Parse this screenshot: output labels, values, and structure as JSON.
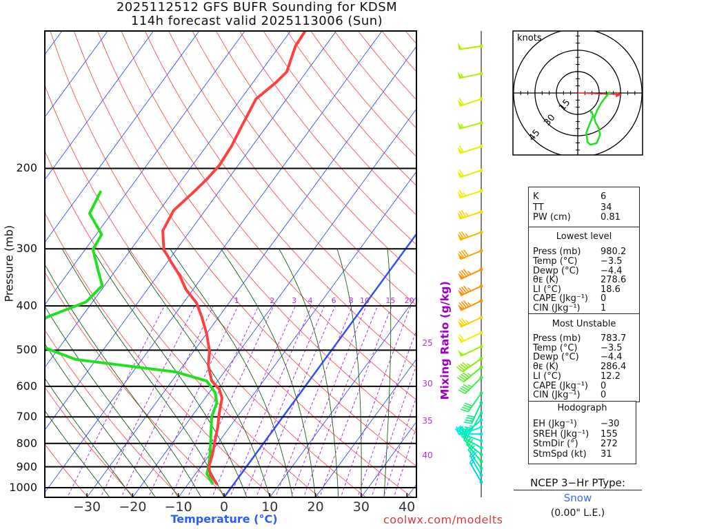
{
  "header": {
    "title_line1": "2025112512 GFS BUFR Sounding for KDSM",
    "title_line2": "114h forecast valid 2025113006 (Sun)"
  },
  "footer": {
    "credit": "coolwx.com/modelts"
  },
  "colors": {
    "temperature": "#ff4040",
    "dewpoint": "#20e020",
    "isotherm": "#3050ff",
    "dry_adiabat": "#ff5050",
    "moist_adiabat": "#106010",
    "mixing_ratio": "#b030e0",
    "storm_motion": "#ff3030"
  },
  "chart_data": {
    "type": "skew-t",
    "title": "2025112512 GFS BUFR Sounding for KDSM",
    "xlabel": "Temperature (°C)",
    "ylabel": "Pressure (mb)",
    "mixing_ratio_label": "Mixing Ratio (g/kg)",
    "xlim": [
      -30,
      40
    ],
    "ylim": [
      1050,
      100
    ],
    "pressure_ticks": [
      "200",
      "300",
      "400",
      "500",
      "600",
      "700",
      "800",
      "900",
      "1000"
    ],
    "pressure_values": [
      200,
      300,
      400,
      500,
      600,
      700,
      800,
      900,
      1000
    ],
    "temp_ticks": [
      "−30",
      "−20",
      "−10",
      "0",
      "10",
      "20",
      "30",
      "40"
    ],
    "temp_values": [
      -30,
      -20,
      -10,
      0,
      10,
      20,
      30,
      40
    ],
    "mixing_ratio_top_labels": [
      "1",
      "2",
      "3",
      "4",
      "6",
      "8",
      "10",
      "15",
      "20"
    ],
    "mixing_ratio_top_values": [
      1,
      2,
      3,
      4,
      6,
      8,
      10,
      15,
      20
    ],
    "mixing_ratio_side_labels": [
      "25",
      "30",
      "35",
      "40"
    ],
    "temperature_profile": [
      [
        983,
        -3.6
      ],
      [
        939,
        -6.5
      ],
      [
        901,
        -8.2
      ],
      [
        846,
        -9.4
      ],
      [
        790,
        -11.0
      ],
      [
        737,
        -12.6
      ],
      [
        687,
        -14.5
      ],
      [
        637,
        -16.3
      ],
      [
        609,
        -18.3
      ],
      [
        584,
        -21.3
      ],
      [
        539,
        -24.6
      ],
      [
        503,
        -26.5
      ],
      [
        461,
        -29.9
      ],
      [
        423,
        -33.7
      ],
      [
        394,
        -37.1
      ],
      [
        368,
        -41.6
      ],
      [
        343,
        -45.2
      ],
      [
        320,
        -49.3
      ],
      [
        301,
        -52.8
      ],
      [
        274,
        -56.0
      ],
      [
        247,
        -56.9
      ],
      [
        226,
        -55.5
      ],
      [
        211,
        -54.6
      ],
      [
        197,
        -54.1
      ],
      [
        179,
        -54.5
      ],
      [
        163,
        -55.4
      ],
      [
        141,
        -56.7
      ],
      [
        130,
        -55.0
      ],
      [
        123,
        -54.3
      ],
      [
        108,
        -56.5
      ],
      [
        100,
        -56.8
      ]
    ],
    "dewpoint_profile": [
      [
        983,
        -4.5
      ],
      [
        933,
        -7.5
      ],
      [
        892,
        -8.5
      ],
      [
        832,
        -10.4
      ],
      [
        763,
        -13.0
      ],
      [
        699,
        -15.6
      ],
      [
        652,
        -16.7
      ],
      [
        619,
        -18.7
      ],
      [
        584,
        -22.4
      ],
      [
        558,
        -30.6
      ],
      [
        524,
        -54.5
      ],
      [
        494,
        -63.1
      ],
      [
        469,
        -71
      ],
      [
        423,
        -67.5
      ],
      [
        392,
        -61.4
      ],
      [
        361,
        -60.5
      ],
      [
        337,
        -63.5
      ],
      [
        301,
        -68.3
      ],
      [
        279,
        -68.8
      ],
      [
        251,
        -74.8
      ],
      [
        224,
        -75.9
      ]
    ],
    "winds": [
      {
        "p": 108,
        "dir": 262,
        "spd": 50,
        "color": "#b0f000"
      },
      {
        "p": 124,
        "dir": 258,
        "spd": 55,
        "color": "#b0f000"
      },
      {
        "p": 141,
        "dir": 252,
        "spd": 60,
        "color": "#e0f000"
      },
      {
        "p": 159,
        "dir": 255,
        "spd": 55,
        "color": "#b0f000"
      },
      {
        "p": 179,
        "dir": 252,
        "spd": 60,
        "color": "#e8f000"
      },
      {
        "p": 202,
        "dir": 252,
        "spd": 60,
        "color": "#e8f000"
      },
      {
        "p": 224,
        "dir": 252,
        "spd": 65,
        "color": "#f0f000"
      },
      {
        "p": 249,
        "dir": 252,
        "spd": 75,
        "color": "#ffd800"
      },
      {
        "p": 276,
        "dir": 250,
        "spd": 75,
        "color": "#ffb000"
      },
      {
        "p": 303,
        "dir": 248,
        "spd": 80,
        "color": "#ffa000"
      },
      {
        "p": 333,
        "dir": 245,
        "spd": 85,
        "color": "#ff9000"
      },
      {
        "p": 362,
        "dir": 245,
        "spd": 85,
        "color": "#ff9000"
      },
      {
        "p": 390,
        "dir": 245,
        "spd": 85,
        "color": "#ff9000"
      },
      {
        "p": 424,
        "dir": 245,
        "spd": 75,
        "color": "#ffd000"
      },
      {
        "p": 458,
        "dir": 245,
        "spd": 60,
        "color": "#f0f000"
      },
      {
        "p": 491,
        "dir": 245,
        "spd": 50,
        "color": "#a0f000"
      },
      {
        "p": 522,
        "dir": 235,
        "spd": 45,
        "color": "#80f000"
      },
      {
        "p": 545,
        "dir": 230,
        "spd": 45,
        "color": "#60f020"
      },
      {
        "p": 574,
        "dir": 225,
        "spd": 45,
        "color": "#40f040"
      },
      {
        "p": 621,
        "dir": 215,
        "spd": 40,
        "color": "#20f060"
      },
      {
        "p": 652,
        "dir": 205,
        "spd": 40,
        "color": "#00f080"
      },
      {
        "p": 687,
        "dir": 210,
        "spd": 35,
        "color": "#00f0a0"
      },
      {
        "p": 711,
        "dir": 230,
        "spd": 35,
        "color": "#00f0c0"
      },
      {
        "p": 737,
        "dir": 250,
        "spd": 30,
        "color": "#00f0e0"
      },
      {
        "p": 763,
        "dir": 270,
        "spd": 30,
        "color": "#00e8f0"
      },
      {
        "p": 790,
        "dir": 290,
        "spd": 25,
        "color": "#00f0d0"
      },
      {
        "p": 818,
        "dir": 300,
        "spd": 25,
        "color": "#00f0b0"
      },
      {
        "p": 846,
        "dir": 310,
        "spd": 25,
        "color": "#00f090"
      },
      {
        "p": 876,
        "dir": 320,
        "spd": 20,
        "color": "#00f070"
      },
      {
        "p": 907,
        "dir": 325,
        "spd": 20,
        "color": "#00f0a0"
      },
      {
        "p": 939,
        "dir": 330,
        "spd": 20,
        "color": "#00e0e0"
      },
      {
        "p": 972,
        "dir": 330,
        "spd": 15,
        "color": "#00d0f0"
      }
    ],
    "hodograph": {
      "units_label": "knots",
      "ring_labels": [
        "15",
        "30",
        "45"
      ],
      "ring_values": [
        15,
        30,
        45
      ],
      "uv": [
        [
          9.5,
          -13.4
        ],
        [
          10.8,
          -15.8
        ],
        [
          8.4,
          -21.5
        ],
        [
          6.0,
          -27.9
        ],
        [
          6.8,
          -34.4
        ],
        [
          8.9,
          -36.3
        ],
        [
          13.2,
          -35.2
        ],
        [
          15.6,
          -29.5
        ],
        [
          14.8,
          -24.7
        ],
        [
          12.4,
          -20.6
        ],
        [
          11.6,
          -17.4
        ],
        [
          13.7,
          -11.8
        ],
        [
          16.5,
          -6.9
        ],
        [
          18.9,
          -3.7
        ],
        [
          22.1,
          0
        ]
      ],
      "storm_motion_uv": [
        31,
        -1.1
      ]
    }
  },
  "indices": {
    "rows": [
      {
        "label": "K",
        "value": "6"
      },
      {
        "label": "TT",
        "value": "34"
      },
      {
        "label": "PW (cm)",
        "value": "0.81"
      }
    ]
  },
  "lowest_level": {
    "title": "Lowest level",
    "rows": [
      {
        "label": "Press (mb)",
        "value": "980.2"
      },
      {
        "label": "Temp (°C)",
        "value": "−3.5"
      },
      {
        "label": "Dewp (°C)",
        "value": "−4.4"
      },
      {
        "label": "θᴇ (K)",
        "value": "278.6"
      },
      {
        "label": "LI (°C)",
        "value": "18.6"
      },
      {
        "label": "CAPE (Jkg⁻¹)",
        "value": "0"
      },
      {
        "label": "CIN (Jkg⁻¹)",
        "value": "1"
      }
    ]
  },
  "most_unstable": {
    "title": "Most Unstable",
    "rows": [
      {
        "label": "Press (mb)",
        "value": "783.7"
      },
      {
        "label": "Temp (°C)",
        "value": "−3.5"
      },
      {
        "label": "Dewp (°C)",
        "value": "−4.4"
      },
      {
        "label": "θᴇ (K)",
        "value": "286.4"
      },
      {
        "label": "LI (°C)",
        "value": "12.2"
      },
      {
        "label": "CAPE (Jkg⁻¹)",
        "value": "0"
      },
      {
        "label": "CIN (Jkg⁻¹)",
        "value": "0"
      }
    ]
  },
  "hodograph_box": {
    "title": "Hodograph",
    "rows": [
      {
        "label": "EH (Jkg⁻¹)",
        "value": "−30"
      },
      {
        "label": "SREH (Jkg⁻¹)",
        "value": "155"
      },
      {
        "label": "StmDir (°)",
        "value": "272"
      },
      {
        "label": "StmSpd (kt)",
        "value": "31"
      }
    ]
  },
  "ptype": {
    "title": "NCEP 3−Hr PType:",
    "value": "Snow",
    "liquid_equivalent": "(0.00\" L.E.)"
  }
}
